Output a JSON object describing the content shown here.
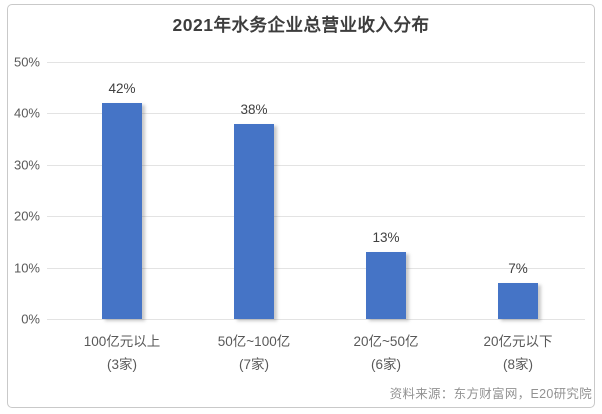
{
  "chart_data": {
    "type": "bar",
    "title": "2021年水务企业总营业收入分布",
    "categories": [
      "100亿元以上",
      "50亿~100亿",
      "20亿~50亿",
      "20亿元以下"
    ],
    "category_sublabels": [
      "(3家)",
      "(7家)",
      "(6家)",
      "(8家)"
    ],
    "values": [
      42,
      38,
      13,
      7
    ],
    "value_labels": [
      "42%",
      "38%",
      "13%",
      "7%"
    ],
    "xlabel": "",
    "ylabel": "",
    "ylim": [
      0,
      50
    ],
    "ytick_step": 10,
    "ytick_labels": [
      "0%",
      "10%",
      "20%",
      "30%",
      "40%",
      "50%"
    ],
    "grid": true,
    "legend": false,
    "bar_color": "#4574C6",
    "gridline_color": "#e3e3e3"
  },
  "source_note": "资料来源：东方财富网，E20研究院"
}
